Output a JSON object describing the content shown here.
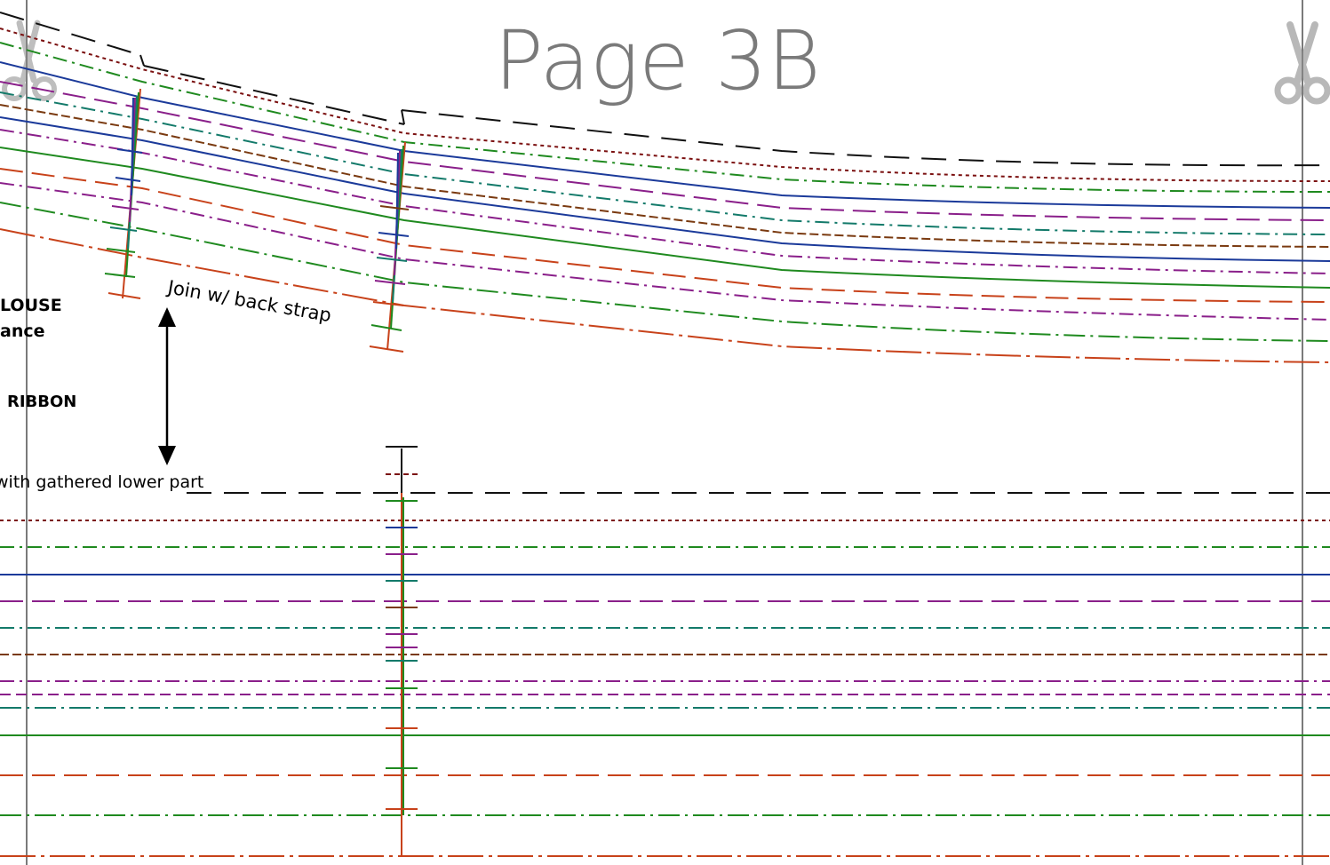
{
  "page_title": "Page 3B",
  "labels": {
    "blouse_partial": "LOUSE",
    "allowance_partial": "ance",
    "ribbon": "RIBBON",
    "gathered_note": "with gathered lower part",
    "join_note": "Join w/ back strap"
  },
  "icons": [
    "scissors-icon-left",
    "scissors-icon-right",
    "double-arrow-icon"
  ],
  "line_colors": {
    "dark_red": "#7b1010",
    "green": "#1f8a1f",
    "blue": "#1b3a9a",
    "purple": "#8a1f8a",
    "teal": "#137a6a",
    "brown": "#7a3a10",
    "orange": "#c8421a",
    "black": "#111111",
    "guide_gray": "#7a7a7a"
  },
  "pattern_lines": [
    {
      "name": "size-line-1",
      "color": "dark_red",
      "style": "dotted"
    },
    {
      "name": "size-line-2",
      "color": "green",
      "style": "dashdot"
    },
    {
      "name": "size-line-3",
      "color": "blue",
      "style": "solid"
    },
    {
      "name": "size-line-4",
      "color": "purple",
      "style": "longdash"
    },
    {
      "name": "size-line-5",
      "color": "teal",
      "style": "dashdot"
    },
    {
      "name": "size-line-6",
      "color": "brown",
      "style": "dashed"
    },
    {
      "name": "size-line-7",
      "color": "purple",
      "style": "dashdot"
    },
    {
      "name": "size-line-8",
      "color": "teal",
      "style": "dashdot2"
    },
    {
      "name": "size-line-9",
      "color": "green",
      "style": "solid"
    },
    {
      "name": "size-line-10",
      "color": "orange",
      "style": "longdash"
    },
    {
      "name": "size-line-11",
      "color": "green",
      "style": "dashdot"
    },
    {
      "name": "size-line-12",
      "color": "orange",
      "style": "dashdot"
    }
  ]
}
